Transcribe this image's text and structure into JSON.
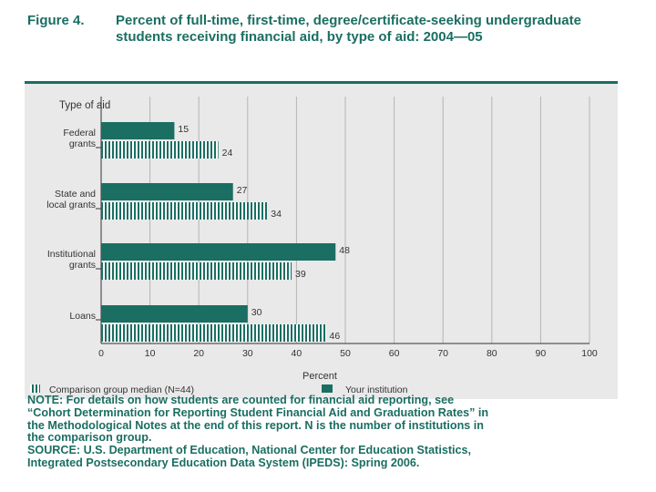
{
  "figure": {
    "label": "Figure 4.",
    "title": "Percent of full-time, first-time, degree/certificate-seeking undergraduate students receiving financial aid, by type of aid: 2004—05"
  },
  "chart_data": {
    "type": "bar",
    "orientation": "horizontal",
    "ylabel": "Type of aid",
    "xlabel": "Percent",
    "xlim": [
      0,
      100
    ],
    "xticks": [
      0,
      10,
      20,
      30,
      40,
      50,
      60,
      70,
      80,
      90,
      100
    ],
    "categories": [
      [
        "Federal",
        "grants"
      ],
      [
        "State and",
        "local grants"
      ],
      [
        "Institutional",
        "grants"
      ],
      [
        "Loans"
      ]
    ],
    "series": [
      {
        "name": "Your institution",
        "values": [
          15,
          27,
          48,
          30
        ],
        "color": "#1a6e62",
        "pattern": "solid"
      },
      {
        "name": "Comparison group median (N=44)",
        "values": [
          24,
          34,
          39,
          46
        ],
        "color": "#1a6e62",
        "pattern": "striped"
      }
    ],
    "legend": [
      "Comparison group median (N=44)",
      "Your institution"
    ]
  },
  "note": {
    "lines": [
      "NOTE: For details on how students are counted for financial aid reporting, see",
      "“Cohort Determination for Reporting Student Financial Aid and Graduation Rates” in",
      "the Methodological Notes at the end of this report. N is the number of institutions in",
      "the comparison group.",
      "SOURCE: U.S. Department of Education, National Center for Education Statistics,",
      "Integrated Postsecondary Education Data System (IPEDS): Spring 2006."
    ]
  }
}
